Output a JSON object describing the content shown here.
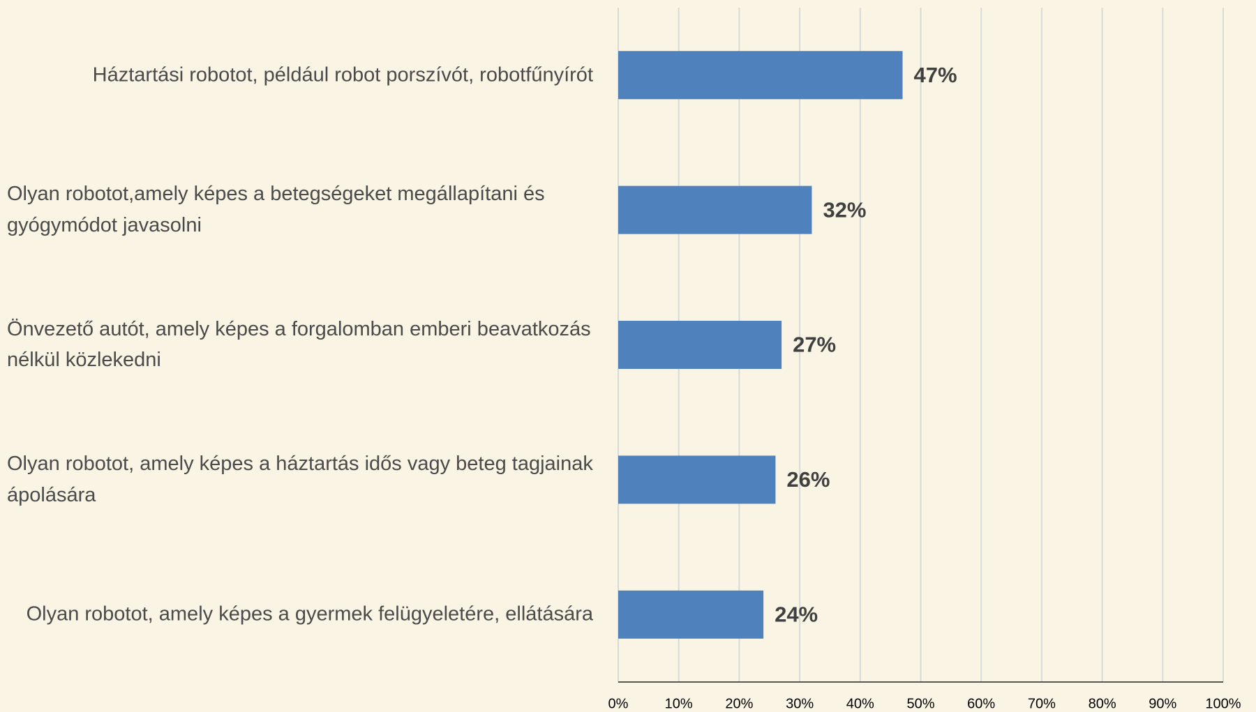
{
  "chart_data": {
    "type": "bar",
    "orientation": "horizontal",
    "categories": [
      "Háztartási robotot, például robot porszívót, robotfűnyírót",
      "Olyan robotot,amely képes a betegségeket megállapítani és gyógymódot javasolni",
      "Önvezető autót, amely képes a forgalomban emberi beavatkozás nélkül közlekedni",
      "Olyan robotot, amely képes a háztartás idős vagy beteg tagjainak ápolására",
      "Olyan robotot, amely képes a gyermek felügyeletére, ellátására"
    ],
    "values": [
      47,
      32,
      27,
      26,
      24
    ],
    "value_labels": [
      "47%",
      "32%",
      "27%",
      "26%",
      "24%"
    ],
    "color": "#4f81bd",
    "xlim": [
      0,
      100
    ],
    "xticks": [
      {
        "value": 0,
        "label": "0%"
      },
      {
        "value": 10,
        "label": "10%"
      },
      {
        "value": 20,
        "label": "20%"
      },
      {
        "value": 30,
        "label": "30%"
      },
      {
        "value": 40,
        "label": "40%"
      },
      {
        "value": 50,
        "label": "50%"
      },
      {
        "value": 60,
        "label": "60%"
      },
      {
        "value": 70,
        "label": "70%"
      },
      {
        "value": 80,
        "label": "80%"
      },
      {
        "value": 90,
        "label": "90%"
      },
      {
        "value": 100,
        "label": "100%"
      }
    ],
    "grid": true
  }
}
